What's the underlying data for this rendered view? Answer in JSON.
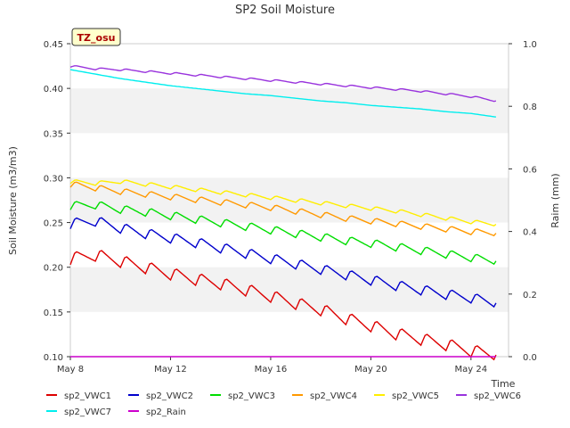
{
  "chart_data": {
    "type": "line",
    "title": "SP2 Soil Moisture",
    "xlabel": "Time",
    "ylabel": "Soil Moisture (m3/m3)",
    "y2label": "Raim (mm)",
    "badge": "TZ_osu",
    "x_range": [
      "2023-05-08",
      "2023-05-25.5"
    ],
    "ylim": [
      0.1,
      0.45
    ],
    "y2lim": [
      0.0,
      1.0
    ],
    "y_ticks": [
      "0.10",
      "0.15",
      "0.20",
      "0.25",
      "0.30",
      "0.35",
      "0.40",
      "0.45"
    ],
    "y2_ticks": [
      "0.0",
      "0.2",
      "0.4",
      "0.6",
      "0.8",
      "1.0"
    ],
    "x_ticks": [
      {
        "date": "2023-05-08",
        "label": "May 8"
      },
      {
        "date": "2023-05-12",
        "label": "May 12"
      },
      {
        "date": "2023-05-16",
        "label": "May 16"
      },
      {
        "date": "2023-05-20",
        "label": "May 20"
      },
      {
        "date": "2023-05-24",
        "label": "May 24"
      }
    ],
    "grid": "horizontal bands",
    "legend_position": "bottom",
    "series": [
      {
        "name": "sp2_VWC1",
        "color": "#dd0000",
        "axis": "left",
        "x": [
          "2023-05-08",
          "2023-05-09",
          "2023-05-10",
          "2023-05-11",
          "2023-05-12",
          "2023-05-13",
          "2023-05-14",
          "2023-05-15",
          "2023-05-16",
          "2023-05-17",
          "2023-05-18",
          "2023-05-19",
          "2023-05-20",
          "2023-05-21",
          "2023-05-22",
          "2023-05-23",
          "2023-05-24",
          "2023-05-25"
        ],
        "y": [
          0.21,
          0.214,
          0.207,
          0.2,
          0.193,
          0.187,
          0.182,
          0.175,
          0.168,
          0.16,
          0.153,
          0.143,
          0.135,
          0.126,
          0.12,
          0.114,
          0.107,
          0.102
        ]
      },
      {
        "name": "sp2_VWC2",
        "color": "#0000cc",
        "axis": "left",
        "x": [
          "2023-05-08",
          "2023-05-09",
          "2023-05-10",
          "2023-05-11",
          "2023-05-12",
          "2023-05-13",
          "2023-05-14",
          "2023-05-15",
          "2023-05-16",
          "2023-05-17",
          "2023-05-18",
          "2023-05-19",
          "2023-05-20",
          "2023-05-21",
          "2023-05-22",
          "2023-05-23",
          "2023-05-24",
          "2023-05-25"
        ],
        "y": [
          0.249,
          0.252,
          0.244,
          0.238,
          0.233,
          0.228,
          0.222,
          0.216,
          0.21,
          0.204,
          0.198,
          0.192,
          0.186,
          0.18,
          0.175,
          0.17,
          0.166,
          0.16
        ]
      },
      {
        "name": "sp2_VWC3",
        "color": "#00dd00",
        "axis": "left",
        "x": [
          "2023-05-08",
          "2023-05-09",
          "2023-05-10",
          "2023-05-11",
          "2023-05-12",
          "2023-05-13",
          "2023-05-14",
          "2023-05-15",
          "2023-05-16",
          "2023-05-17",
          "2023-05-18",
          "2023-05-19",
          "2023-05-20",
          "2023-05-21",
          "2023-05-22",
          "2023-05-23",
          "2023-05-24",
          "2023-05-25"
        ],
        "y": [
          0.269,
          0.27,
          0.265,
          0.262,
          0.258,
          0.254,
          0.25,
          0.246,
          0.242,
          0.238,
          0.234,
          0.23,
          0.227,
          0.223,
          0.219,
          0.215,
          0.211,
          0.207
        ]
      },
      {
        "name": "sp2_VWC4",
        "color": "#ff9900",
        "axis": "left",
        "x": [
          "2023-05-08",
          "2023-05-09",
          "2023-05-10",
          "2023-05-11",
          "2023-05-12",
          "2023-05-13",
          "2023-05-14",
          "2023-05-15",
          "2023-05-16",
          "2023-05-17",
          "2023-05-18",
          "2023-05-19",
          "2023-05-20",
          "2023-05-21",
          "2023-05-22",
          "2023-05-23",
          "2023-05-24",
          "2023-05-25"
        ],
        "y": [
          0.293,
          0.289,
          0.285,
          0.282,
          0.279,
          0.276,
          0.273,
          0.27,
          0.267,
          0.263,
          0.259,
          0.255,
          0.252,
          0.249,
          0.246,
          0.243,
          0.24,
          0.238
        ]
      },
      {
        "name": "sp2_VWC5",
        "color": "#ffee00",
        "axis": "left",
        "x": [
          "2023-05-08",
          "2023-05-09",
          "2023-05-10",
          "2023-05-11",
          "2023-05-12",
          "2023-05-13",
          "2023-05-14",
          "2023-05-15",
          "2023-05-16",
          "2023-05-17",
          "2023-05-18",
          "2023-05-19",
          "2023-05-20",
          "2023-05-21",
          "2023-05-22",
          "2023-05-23",
          "2023-05-24",
          "2023-05-25"
        ],
        "y": [
          0.296,
          0.294,
          0.296,
          0.293,
          0.29,
          0.287,
          0.284,
          0.281,
          0.278,
          0.275,
          0.272,
          0.269,
          0.266,
          0.263,
          0.259,
          0.255,
          0.251,
          0.248
        ]
      },
      {
        "name": "sp2_VWC6",
        "color": "#9933dd",
        "axis": "left",
        "x": [
          "2023-05-08",
          "2023-05-09",
          "2023-05-10",
          "2023-05-11",
          "2023-05-12",
          "2023-05-13",
          "2023-05-14",
          "2023-05-15",
          "2023-05-16",
          "2023-05-17",
          "2023-05-18",
          "2023-05-19",
          "2023-05-20",
          "2023-05-21",
          "2023-05-22",
          "2023-05-23",
          "2023-05-24",
          "2023-05-25"
        ],
        "y": [
          0.425,
          0.422,
          0.421,
          0.419,
          0.417,
          0.415,
          0.413,
          0.411,
          0.409,
          0.407,
          0.405,
          0.403,
          0.401,
          0.399,
          0.397,
          0.394,
          0.391,
          0.386
        ]
      },
      {
        "name": "sp2_VWC7",
        "color": "#00eeee",
        "axis": "left",
        "x": [
          "2023-05-08",
          "2023-05-09",
          "2023-05-10",
          "2023-05-11",
          "2023-05-12",
          "2023-05-13",
          "2023-05-14",
          "2023-05-15",
          "2023-05-16",
          "2023-05-17",
          "2023-05-18",
          "2023-05-19",
          "2023-05-20",
          "2023-05-21",
          "2023-05-22",
          "2023-05-23",
          "2023-05-24",
          "2023-05-25"
        ],
        "y": [
          0.421,
          0.416,
          0.411,
          0.407,
          0.403,
          0.4,
          0.397,
          0.394,
          0.392,
          0.389,
          0.386,
          0.384,
          0.381,
          0.379,
          0.377,
          0.374,
          0.372,
          0.368
        ]
      },
      {
        "name": "sp2_Rain",
        "color": "#cc00cc",
        "axis": "right",
        "x": [
          "2023-05-08",
          "2023-05-25"
        ],
        "y": [
          0.0,
          0.0
        ]
      }
    ]
  }
}
